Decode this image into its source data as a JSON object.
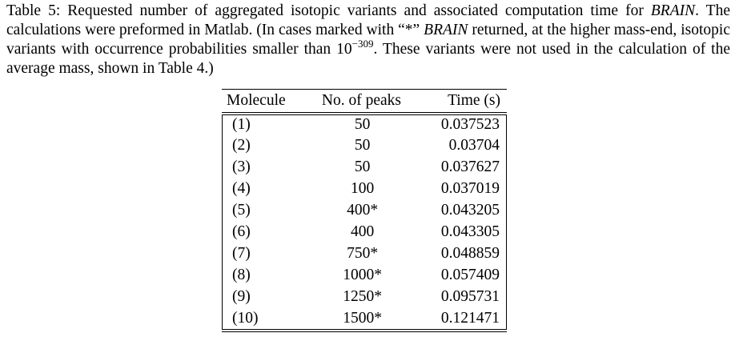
{
  "caption": {
    "part1": "Table 5: Requested number of aggregated isotopic variants and associated computation time for ",
    "brain1": "BRAIN",
    "part2": ". The calculations were preformed in Matlab. (In cases marked with “*” ",
    "brain2": "BRAIN",
    "part3": " returned, at the higher mass-end, isotopic variants with occurrence probabilities smaller than 10",
    "exponent": "−309",
    "part4": ". These variants were not used in the calculation of the average mass, shown in Table 4.)"
  },
  "table": {
    "headers": {
      "molecule": "Molecule",
      "peaks": "No. of peaks",
      "time": "Time (s)"
    },
    "rows": [
      {
        "molecule": "(1)",
        "peaks": "50",
        "time": "0.037523"
      },
      {
        "molecule": "(2)",
        "peaks": "50",
        "time": "0.03704"
      },
      {
        "molecule": "(3)",
        "peaks": "50",
        "time": "0.037627"
      },
      {
        "molecule": "(4)",
        "peaks": "100",
        "time": "0.037019"
      },
      {
        "molecule": "(5)",
        "peaks": "400*",
        "time": "0.043205"
      },
      {
        "molecule": "(6)",
        "peaks": "400",
        "time": "0.043305"
      },
      {
        "molecule": "(7)",
        "peaks": "750*",
        "time": "0.048859"
      },
      {
        "molecule": "(8)",
        "peaks": "1000*",
        "time": "0.057409"
      },
      {
        "molecule": "(9)",
        "peaks": "1250*",
        "time": "0.095731"
      },
      {
        "molecule": "(10)",
        "peaks": "1500*",
        "time": "0.121471"
      }
    ]
  }
}
